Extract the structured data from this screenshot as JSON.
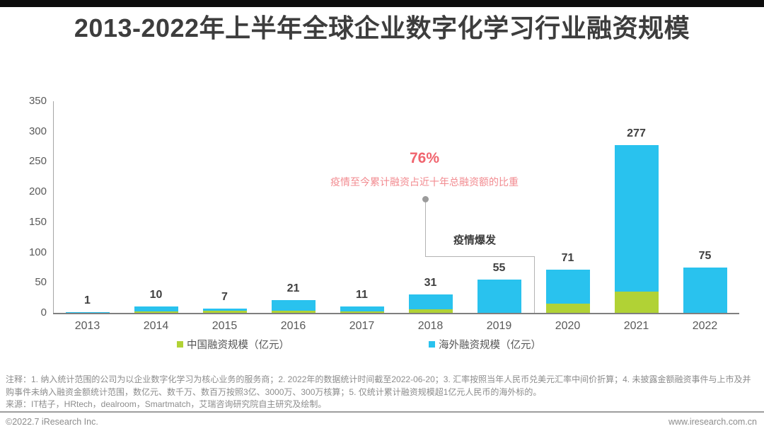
{
  "header": {
    "title": "2013-2022年上半年全球企业数字化学习行业融资规模"
  },
  "chart_data": {
    "type": "bar",
    "stacked": true,
    "title": "2013-2022年上半年全球企业数字化学习行业融资规模",
    "categories": [
      "2013",
      "2014",
      "2015",
      "2016",
      "2017",
      "2018",
      "2019",
      "2020",
      "2021",
      "2022"
    ],
    "series": [
      {
        "name": "中国融资规模（亿元）",
        "color": "#b1d235",
        "values": [
          0,
          2,
          3,
          4,
          2,
          6,
          0,
          15,
          35,
          0
        ]
      },
      {
        "name": "海外融资规模（亿元）",
        "color": "#29c2ee",
        "values": [
          1,
          8,
          4,
          17,
          9,
          25,
          55,
          56,
          242,
          75
        ]
      }
    ],
    "totals": [
      1,
      10,
      7,
      21,
      11,
      31,
      55,
      71,
      277,
      75
    ],
    "total_labels": [
      "1",
      "10",
      "7",
      "21",
      "11",
      "31",
      "55",
      "71",
      "277",
      "75"
    ],
    "xlabel": "",
    "ylabel": "",
    "ylim": [
      0,
      350
    ],
    "yticks": [
      350,
      300,
      250,
      200,
      150,
      100,
      50,
      0
    ],
    "grid": false,
    "legend_position": "bottom",
    "annotation": {
      "percent": "76%",
      "description": "疫情至今累计融资占近十年总融资额的比重",
      "event_label": "疫情爆发",
      "accent_color": "#f0646e"
    }
  },
  "footer": {
    "notes": "注释：1. 纳入统计范围的公司为以企业数字化学习为核心业务的服务商；2. 2022年的数据统计时间截至2022-06-20；3. 汇率按照当年人民币兑美元汇率中间价折算；4. 未披露金额融资事件与上市及并购事件未纳入融资金额统计范围，数亿元、数千万、数百万按照3亿、3000万、300万核算；5. 仅统计累计融资规模超1亿元人民币的海外标的。",
    "source": "来源：IT桔子，HRtech，dealroom，Smartmatch，艾瑞咨询研究院自主研究及绘制。",
    "copyright": "©2022.7 iResearch Inc.",
    "website": "www.iresearch.com.cn"
  }
}
